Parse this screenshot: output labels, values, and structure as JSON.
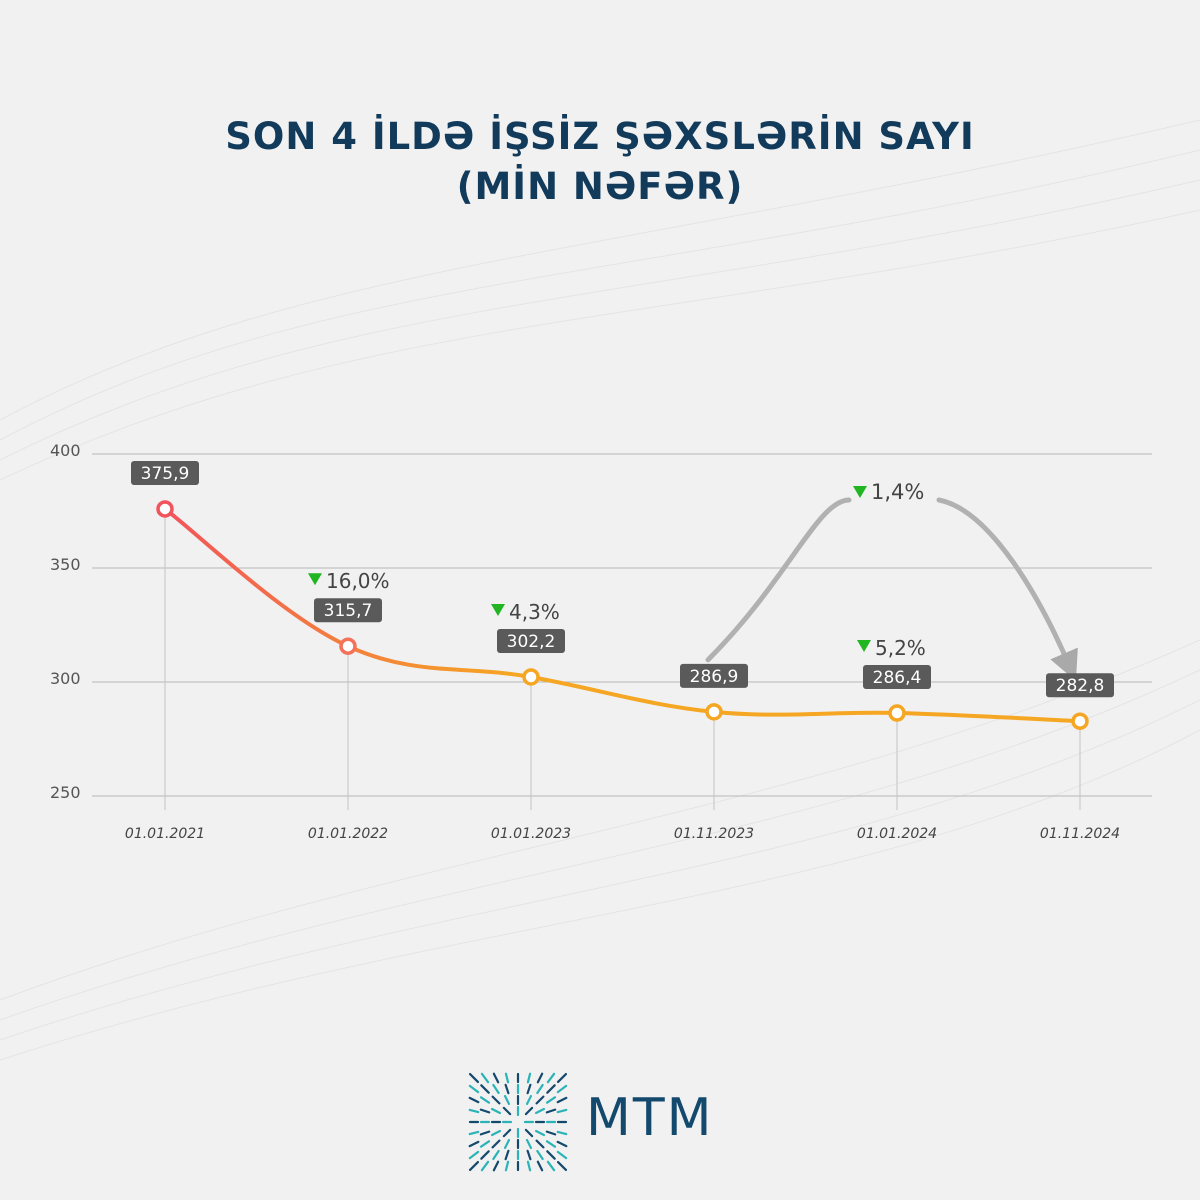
{
  "title_line1": "SON 4 İLDƏ İŞSİZ ŞƏXSLƏRİN SAYI",
  "title_line2": "(MİN NƏFƏR)",
  "brand": "MTM",
  "colors": {
    "title": "#123a5a",
    "line_start": "#f2545b",
    "line_end": "#f5a623",
    "label_box": "#5a5a5a",
    "decrease_arrow": "#22b522",
    "brand": "#14496e",
    "logo_accent": "#2bb3b8"
  },
  "chart_data": {
    "type": "line",
    "categories": [
      "01.01.2021",
      "01.01.2022",
      "01.01.2023",
      "01.11.2023",
      "01.01.2024",
      "01.11.2024"
    ],
    "values": [
      375.9,
      315.7,
      302.2,
      286.9,
      286.4,
      282.8
    ],
    "value_labels": [
      "375,9",
      "315,7",
      "302,2",
      "286,9",
      "286,4",
      "282,8"
    ],
    "change_labels": [
      "",
      "16,0%",
      "4,3%",
      "",
      "5,2%",
      ""
    ],
    "yticks": [
      400,
      350,
      300,
      250
    ],
    "ylim": [
      250,
      400
    ],
    "grid": true,
    "annotation": {
      "label": "1,4%",
      "from_category": "01.11.2023",
      "to_category": "01.11.2024",
      "direction": "decrease"
    }
  }
}
